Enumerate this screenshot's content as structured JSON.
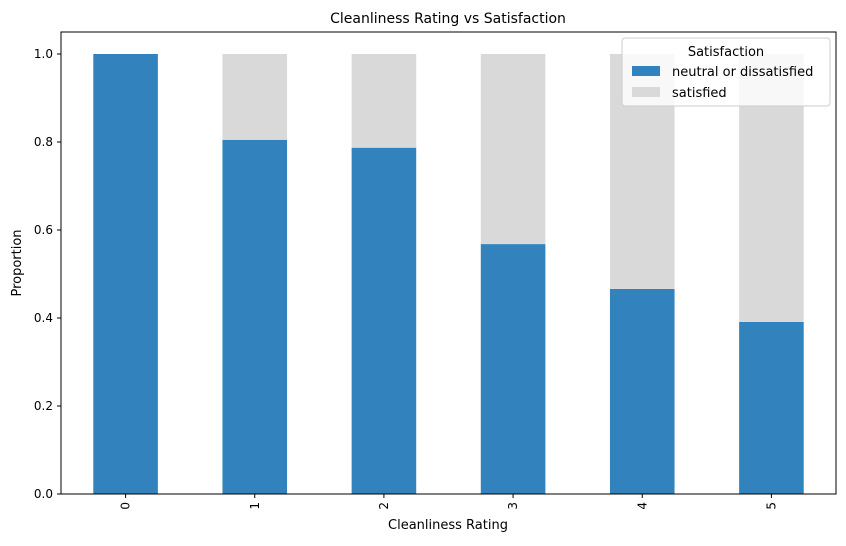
{
  "chart_data": {
    "type": "bar",
    "stacked": true,
    "title": "Cleanliness Rating vs Satisfaction",
    "xlabel": "Cleanliness Rating",
    "ylabel": "Proportion",
    "categories": [
      "0",
      "1",
      "2",
      "3",
      "4",
      "5"
    ],
    "ylim": [
      0,
      1.05
    ],
    "yticks": [
      "0.0",
      "0.2",
      "0.4",
      "0.6",
      "0.8",
      "1.0"
    ],
    "grid": false,
    "legend": {
      "title": "Satisfaction",
      "placement": "top-right"
    },
    "series": [
      {
        "name": "neutral or dissatisfied",
        "color": "#3182bd",
        "values": [
          1.0,
          0.805,
          0.787,
          0.568,
          0.466,
          0.391
        ]
      },
      {
        "name": "satisfied",
        "color": "#d9d9d9",
        "values": [
          0.0,
          0.195,
          0.213,
          0.432,
          0.534,
          0.609
        ]
      }
    ]
  }
}
